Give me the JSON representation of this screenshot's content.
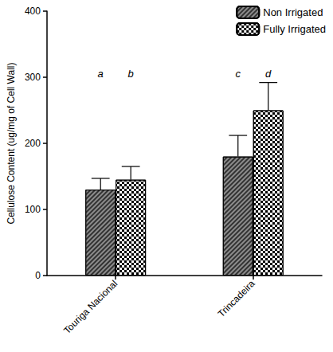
{
  "chart_data": {
    "type": "bar",
    "y_label": "Cellulose Content (ug/mg of Cell Wall)",
    "categories": [
      "Touriga Nacional",
      "Trincadeira"
    ],
    "series": [
      {
        "name": "Non Irrigated",
        "color": "#8c8c8c",
        "values": [
          130,
          180
        ],
        "errors": [
          17,
          32
        ]
      },
      {
        "name": "Fully Irrigated",
        "color": "#ffffff",
        "values": [
          145,
          250
        ],
        "errors": [
          20,
          42
        ]
      }
    ],
    "annotations": [
      {
        "text": "a",
        "category": "Touriga Nacional",
        "series": "Non Irrigated",
        "y": 305
      },
      {
        "text": "b",
        "category": "Touriga Nacional",
        "series": "Fully Irrigated",
        "y": 305
      },
      {
        "text": "c",
        "category": "Trincadeira",
        "series": "Non Irrigated",
        "y": 305
      },
      {
        "text": "d",
        "category": "Trincadeira",
        "series": "Fully Irrigated",
        "y": 305
      }
    ],
    "ylim": [
      0,
      400
    ],
    "yticks": [
      0,
      100,
      200,
      300,
      400
    ],
    "grid": false,
    "legend": "upper right"
  }
}
